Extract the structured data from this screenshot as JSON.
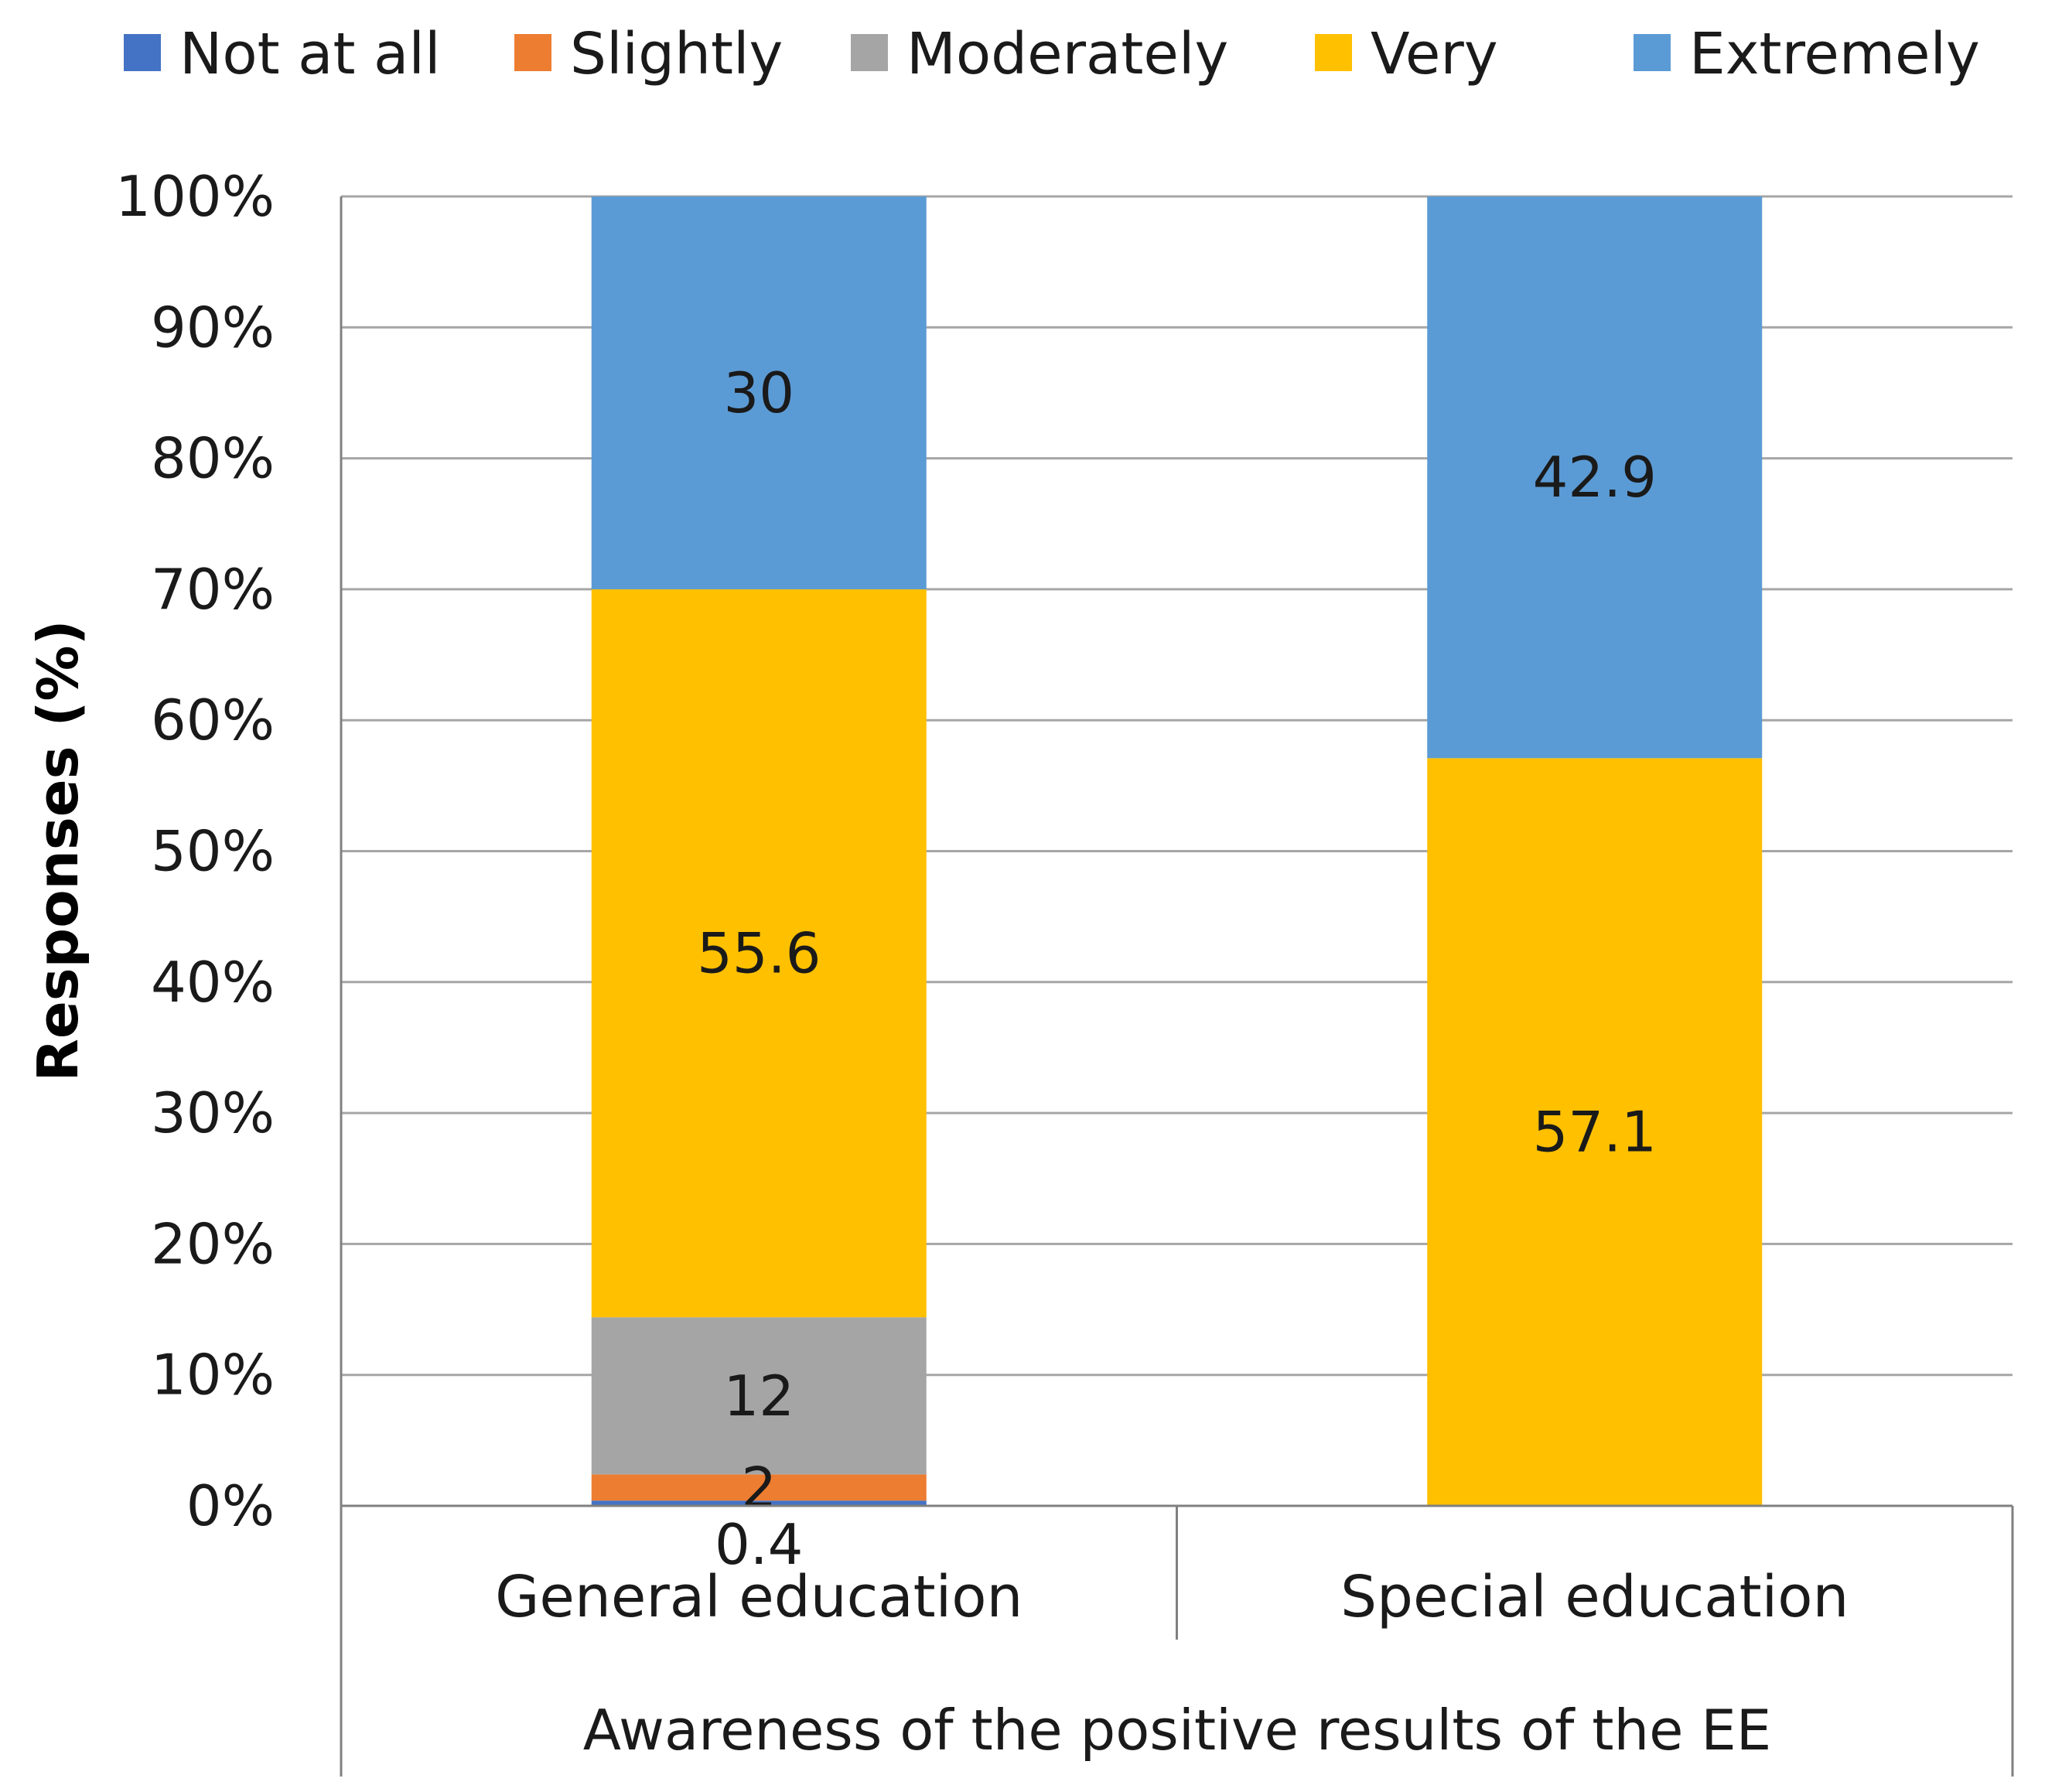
{
  "chart_data": {
    "type": "bar",
    "stacked": true,
    "percent_axis": true,
    "ylabel": "Responses (%)",
    "xlabel": "Awareness of the positive results of the EE",
    "categories": [
      "General education",
      "Special education"
    ],
    "y_ticks": [
      "0%",
      "10%",
      "20%",
      "30%",
      "40%",
      "50%",
      "60%",
      "70%",
      "80%",
      "90%",
      "100%"
    ],
    "ylim": [
      0,
      100
    ],
    "grid": true,
    "legend_position": "top",
    "series": [
      {
        "name": "Not at all",
        "color": "#4472c4",
        "values": [
          0.4,
          0
        ],
        "labels": [
          "0.4",
          ""
        ]
      },
      {
        "name": "Slightly",
        "color": "#ed7d31",
        "values": [
          2,
          0
        ],
        "labels": [
          "2",
          ""
        ]
      },
      {
        "name": "Moderately",
        "color": "#a5a5a5",
        "values": [
          12,
          0
        ],
        "labels": [
          "12",
          ""
        ]
      },
      {
        "name": "Very",
        "color": "#ffc000",
        "values": [
          55.6,
          57.1
        ],
        "labels": [
          "55.6",
          "57.1"
        ]
      },
      {
        "name": "Extremely",
        "color": "#5b9bd5",
        "values": [
          30,
          42.9
        ],
        "labels": [
          "30",
          "42.9"
        ]
      }
    ]
  }
}
